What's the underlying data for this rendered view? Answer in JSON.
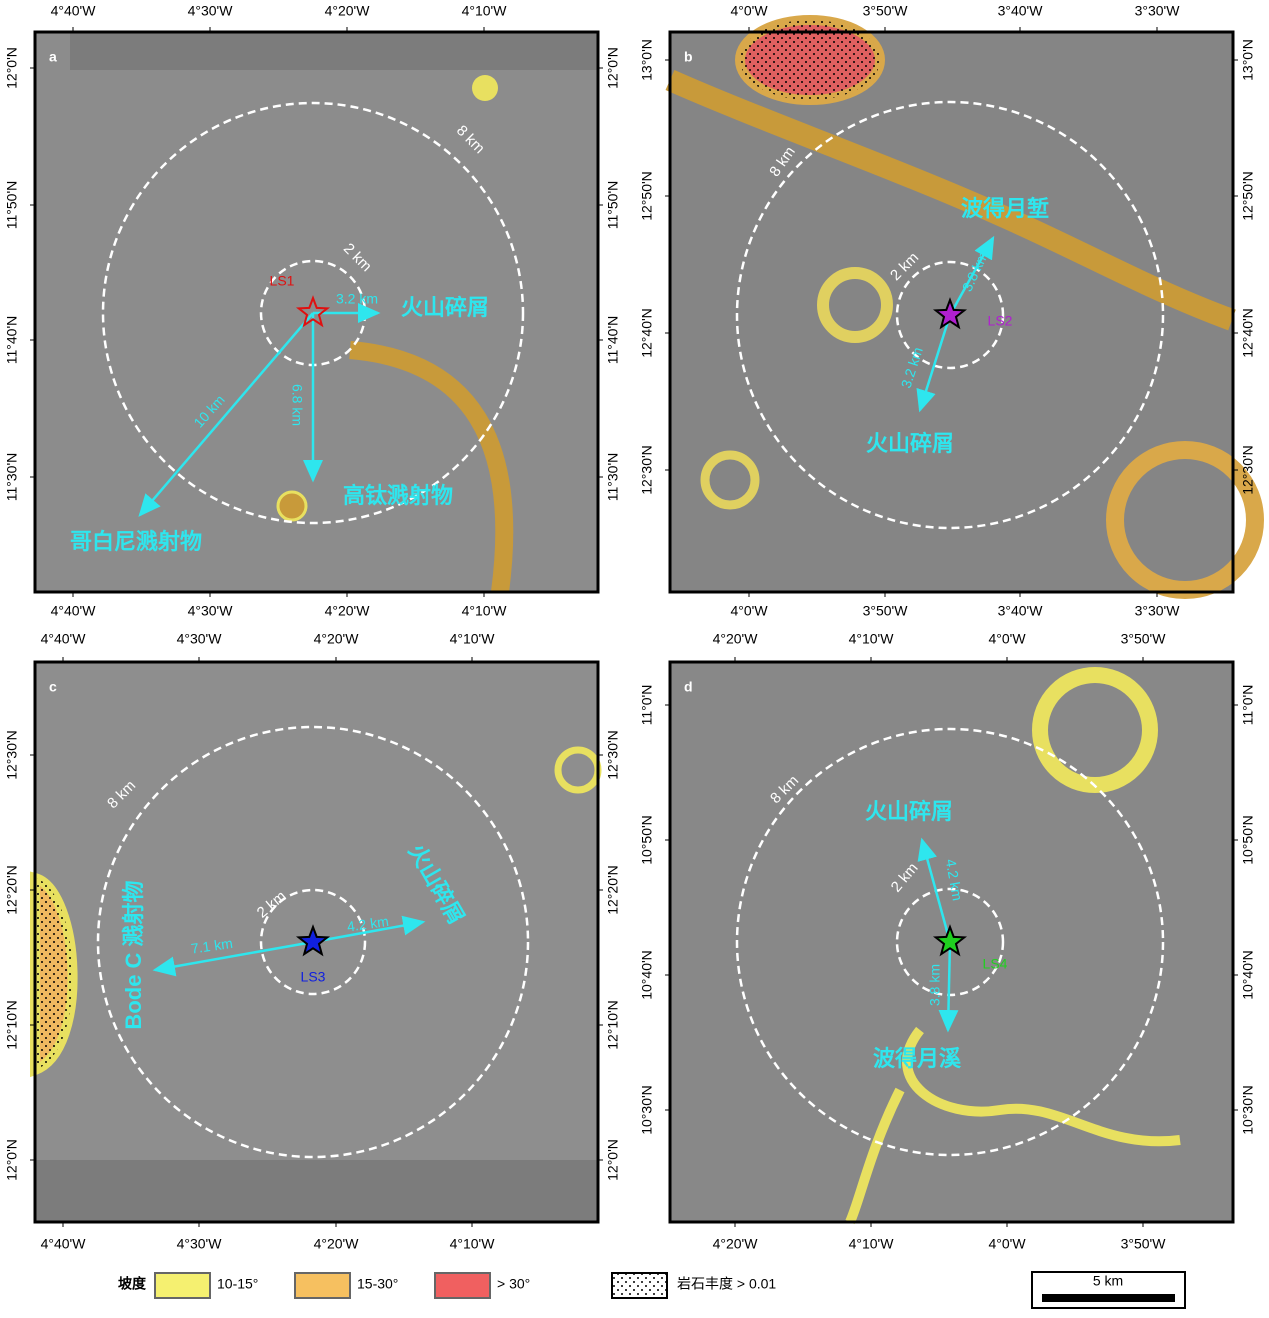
{
  "panels": [
    {
      "letter": "a",
      "top_ticks": [
        "4°40'W",
        "4°30'W",
        "4°20'W",
        "4°10'W"
      ],
      "bottom_ticks": [
        "4°40'W",
        "4°30'W",
        "4°20'W",
        "4°10'W"
      ],
      "left_ticks": [
        "12°0'N",
        "11°50'N",
        "11°40'N",
        "11°30'N"
      ],
      "right_ticks": [
        "12°0'N",
        "11°50'N",
        "11°40'N",
        "11°30'N"
      ],
      "outer_circle": "8 km",
      "inner_circle": "2 km",
      "site": "LS1",
      "arrows": [
        {
          "distance": "3.2 km",
          "target": "火山碎屑"
        },
        {
          "distance": "6.8 km",
          "target": "高钛溅射物"
        },
        {
          "distance": "10 km",
          "target": "哥白尼溅射物"
        }
      ]
    },
    {
      "letter": "b",
      "top_ticks": [
        "4°0'W",
        "3°50'W",
        "3°40'W",
        "3°30'W"
      ],
      "bottom_ticks": [
        "4°0'W",
        "3°50'W",
        "3°40'W",
        "3°30'W"
      ],
      "left_ticks": [
        "13°0'N",
        "12°50'N",
        "12°40'N",
        "12°30'N"
      ],
      "right_ticks": [
        "13°0'N",
        "12°50'N",
        "12°40'N",
        "12°30'N"
      ],
      "outer_circle": "8 km",
      "inner_circle": "2 km",
      "site": "LS2",
      "arrows": [
        {
          "distance": "3.8 km",
          "target": "波得月堑"
        },
        {
          "distance": "3.2 km",
          "target": "火山碎屑"
        }
      ]
    },
    {
      "letter": "c",
      "top_ticks": [
        "4°40'W",
        "4°30'W",
        "4°20'W",
        "4°10'W"
      ],
      "bottom_ticks": [
        "4°40'W",
        "4°30'W",
        "4°20'W",
        "4°10'W"
      ],
      "left_ticks": [
        "12°30'N",
        "12°20'N",
        "12°10'N",
        "12°0'N"
      ],
      "right_ticks": [
        "12°30'N",
        "12°20'N",
        "12°10'N",
        "12°0'N"
      ],
      "outer_circle": "8 km",
      "inner_circle": "2 km",
      "site": "LS3",
      "arrows": [
        {
          "distance": "4.2 km",
          "target": "火山碎屑"
        },
        {
          "distance": "7.1 km",
          "target": "Bode C 溅射物"
        }
      ]
    },
    {
      "letter": "d",
      "top_ticks": [
        "4°20'W",
        "4°10'W",
        "4°0'W",
        "3°50'W"
      ],
      "bottom_ticks": [
        "4°20'W",
        "4°10'W",
        "4°0'W",
        "3°50'W"
      ],
      "left_ticks": [
        "11°0'N",
        "10°50'N",
        "10°40'N",
        "10°30'N"
      ],
      "right_ticks": [
        "11°0'N",
        "10°50'N",
        "10°40'N",
        "10°30'N"
      ],
      "outer_circle": "8 km",
      "inner_circle": "2 km",
      "site": "LS4",
      "arrows": [
        {
          "distance": "4.2 km",
          "target": "火山碎屑"
        },
        {
          "distance": "3.8 km",
          "target": "波得月溪"
        }
      ]
    }
  ],
  "legend": {
    "title": "坡度",
    "slope_classes": [
      "10-15°",
      "15-30°",
      "> 30°"
    ],
    "rock": "岩石丰度 > 0.01",
    "scale": "5 km"
  }
}
